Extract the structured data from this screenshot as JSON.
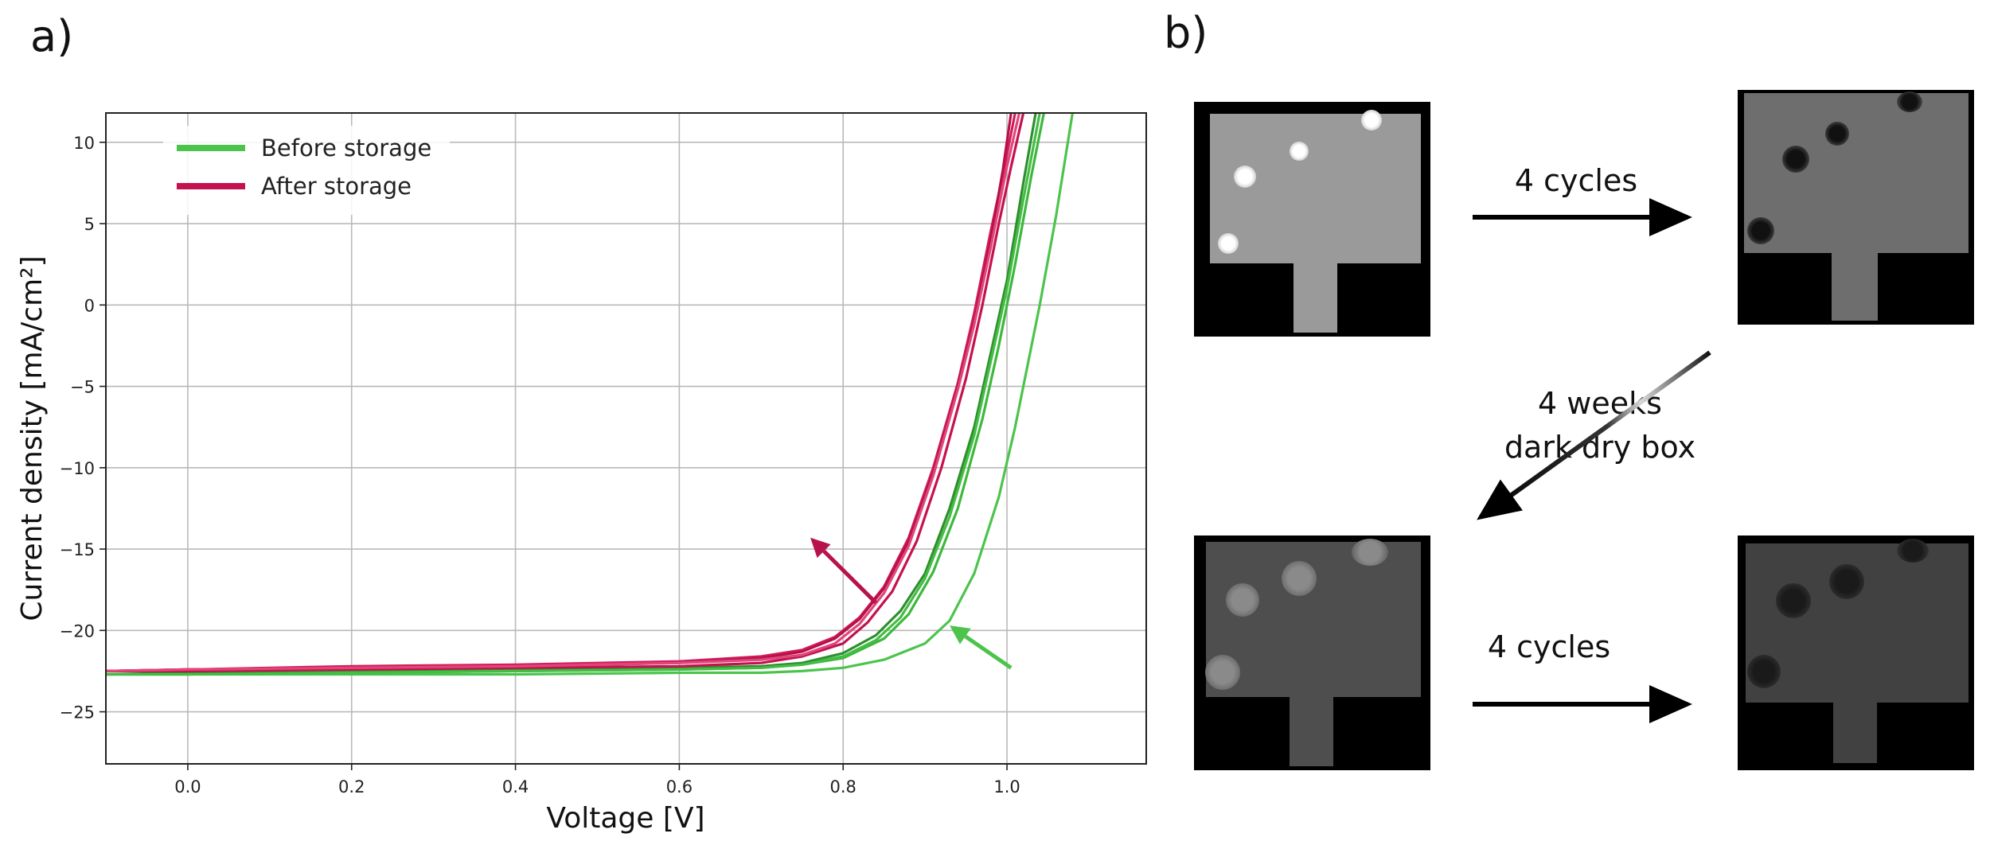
{
  "panels": {
    "a": "a)",
    "b": "b)"
  },
  "chart_data": {
    "type": "line",
    "xlabel": "Voltage [V]",
    "ylabel": "Current density [mA/cm²]",
    "xlim": [
      -0.1,
      1.17
    ],
    "ylim": [
      -28.2,
      11.8
    ],
    "xticks": [
      "0.0",
      "0.2",
      "0.4",
      "0.6",
      "0.8",
      "1.0"
    ],
    "yticks": [
      "10",
      "5",
      "0",
      "−5",
      "−10",
      "−15",
      "−20",
      "−25"
    ],
    "grid": true,
    "legend_position": "top-left",
    "legend": [
      {
        "label": "Before storage",
        "color": "#4cc44c"
      },
      {
        "label": "After storage",
        "color": "#c41250"
      }
    ],
    "series": [
      {
        "group": "before",
        "color": "#4cc44c",
        "x": [
          -0.1,
          0.0,
          0.2,
          0.4,
          0.6,
          0.7,
          0.75,
          0.8,
          0.85,
          0.9,
          0.93,
          0.96,
          0.99,
          1.01,
          1.04,
          1.06,
          1.08
        ],
        "y": [
          -22.7,
          -22.7,
          -22.7,
          -22.7,
          -22.6,
          -22.6,
          -22.5,
          -22.3,
          -21.8,
          -20.8,
          -19.4,
          -16.5,
          -11.8,
          -7.5,
          0.0,
          5.5,
          11.8
        ]
      },
      {
        "group": "before",
        "color": "#3db83d",
        "x": [
          -0.1,
          0.0,
          0.2,
          0.4,
          0.6,
          0.7,
          0.75,
          0.8,
          0.85,
          0.88,
          0.91,
          0.94,
          0.97,
          0.99,
          1.01,
          1.03,
          1.045
        ],
        "y": [
          -22.7,
          -22.7,
          -22.6,
          -22.5,
          -22.4,
          -22.3,
          -22.1,
          -21.7,
          -20.5,
          -19.0,
          -16.4,
          -12.5,
          -7.0,
          -2.5,
          2.5,
          8.0,
          11.8
        ]
      },
      {
        "group": "before",
        "color": "#2e8f2e",
        "x": [
          -0.1,
          0.0,
          0.2,
          0.4,
          0.6,
          0.7,
          0.75,
          0.8,
          0.84,
          0.87,
          0.9,
          0.93,
          0.96,
          0.98,
          1.0,
          1.02,
          1.035
        ],
        "y": [
          -22.7,
          -22.6,
          -22.5,
          -22.4,
          -22.3,
          -22.2,
          -22.0,
          -21.4,
          -20.3,
          -18.8,
          -16.5,
          -12.5,
          -7.5,
          -3.0,
          1.5,
          7.5,
          11.8
        ]
      },
      {
        "group": "before",
        "color": "#44bd44",
        "x": [
          -0.1,
          0.0,
          0.2,
          0.4,
          0.6,
          0.7,
          0.75,
          0.8,
          0.84,
          0.87,
          0.9,
          0.93,
          0.96,
          0.98,
          1.0,
          1.02,
          1.04
        ],
        "y": [
          -22.7,
          -22.7,
          -22.6,
          -22.5,
          -22.4,
          -22.3,
          -22.1,
          -21.6,
          -20.6,
          -19.2,
          -16.8,
          -13.0,
          -8.0,
          -3.5,
          1.0,
          6.5,
          11.8
        ]
      },
      {
        "group": "after",
        "color": "#c41250",
        "x": [
          -0.1,
          0.0,
          0.2,
          0.4,
          0.6,
          0.7,
          0.75,
          0.8,
          0.83,
          0.86,
          0.89,
          0.92,
          0.95,
          0.97,
          0.99,
          1.005,
          1.02
        ],
        "y": [
          -22.5,
          -22.5,
          -22.4,
          -22.3,
          -22.2,
          -22.0,
          -21.6,
          -20.8,
          -19.5,
          -17.6,
          -14.5,
          -10.0,
          -4.5,
          0.0,
          5.0,
          8.5,
          11.8
        ]
      },
      {
        "group": "after",
        "color": "#d01e5c",
        "x": [
          -0.1,
          0.0,
          0.2,
          0.4,
          0.6,
          0.7,
          0.75,
          0.79,
          0.82,
          0.85,
          0.88,
          0.91,
          0.94,
          0.96,
          0.98,
          0.995,
          1.01
        ],
        "y": [
          -22.5,
          -22.4,
          -22.2,
          -22.1,
          -21.9,
          -21.6,
          -21.2,
          -20.4,
          -19.2,
          -17.3,
          -14.3,
          -10.0,
          -4.8,
          -0.5,
          4.5,
          8.0,
          11.8
        ]
      },
      {
        "group": "after",
        "color": "#b80f4a",
        "x": [
          -0.1,
          0.0,
          0.2,
          0.4,
          0.6,
          0.7,
          0.75,
          0.79,
          0.82,
          0.85,
          0.88,
          0.91,
          0.94,
          0.96,
          0.98,
          0.995,
          1.005
        ],
        "y": [
          -22.5,
          -22.4,
          -22.3,
          -22.2,
          -22.0,
          -21.7,
          -21.3,
          -20.5,
          -19.3,
          -17.4,
          -14.5,
          -10.3,
          -5.0,
          -1.0,
          4.0,
          8.3,
          11.8
        ]
      },
      {
        "group": "after",
        "color": "#e0467a",
        "x": [
          -0.1,
          0.0,
          0.2,
          0.4,
          0.6,
          0.7,
          0.75,
          0.79,
          0.82,
          0.85,
          0.88,
          0.91,
          0.94,
          0.96,
          0.98,
          1.0,
          1.015
        ],
        "y": [
          -22.5,
          -22.4,
          -22.3,
          -22.2,
          -22.0,
          -21.8,
          -21.5,
          -20.8,
          -19.6,
          -17.7,
          -14.8,
          -10.5,
          -5.2,
          -1.2,
          3.5,
          8.5,
          11.8
        ]
      }
    ],
    "annotations": [
      {
        "type": "arrow",
        "color": "#b8124c",
        "from": [
          0.84,
          -18.3
        ],
        "to": [
          0.76,
          -14.3
        ]
      },
      {
        "type": "arrow",
        "color": "#4cc44c",
        "from": [
          1.005,
          -22.3
        ],
        "to": [
          0.93,
          -19.7
        ]
      }
    ]
  },
  "flow": {
    "step1": "4 cycles",
    "step2_line1": "4 weeks",
    "step2_line2": "dark dry box",
    "step3": "4 cycles"
  },
  "photos": [
    {
      "name": "photo-initial",
      "body_color": "#9a9a9a",
      "spot_color": "#ffffff"
    },
    {
      "name": "photo-after-4-cycles",
      "body_color": "#6e6e6e",
      "spot_color": "#111111"
    },
    {
      "name": "photo-after-storage",
      "body_color": "#4e4e4e",
      "spot_color": "#8a8a8a"
    },
    {
      "name": "photo-after-storage-4-cycles",
      "body_color": "#414141",
      "spot_color": "#1a1a1a"
    }
  ]
}
